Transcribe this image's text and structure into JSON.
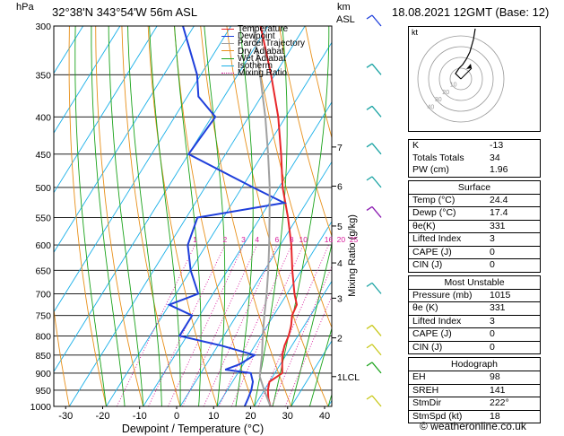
{
  "header": {
    "hpa_label": "hPa",
    "location": "32°38'N  343°54'W  56m  ASL",
    "km_label": "km",
    "asl_label": "ASL",
    "datetime": "18.08.2021  12GMT  (Base: 12)"
  },
  "colors": {
    "temperature": "#e8272a",
    "dewpoint": "#1f3fdb",
    "parcel": "#a0a0a0",
    "dry_adiabat": "#e8901a",
    "wet_adiabat": "#1aa31a",
    "isotherm": "#1ab0e8",
    "mixing_ratio": "#d81a9c"
  },
  "legend": [
    {
      "label": "Temperature",
      "color": "#e8272a",
      "style": "solid"
    },
    {
      "label": "Dewpoint",
      "color": "#1f3fdb",
      "style": "solid"
    },
    {
      "label": "Parcel Trajectory",
      "color": "#a0a0a0",
      "style": "solid"
    },
    {
      "label": "Dry Adiabat",
      "color": "#e8901a",
      "style": "solid"
    },
    {
      "label": "Wet Adiabat",
      "color": "#1aa31a",
      "style": "solid"
    },
    {
      "label": "Isotherm",
      "color": "#1ab0e8",
      "style": "solid"
    },
    {
      "label": "Mixing Ratio",
      "color": "#d81a9c",
      "style": "dotted"
    }
  ],
  "chart_data": {
    "type": "line",
    "xlabel": "Dewpoint / Temperature (°C)",
    "ylabel": "",
    "right_axis_label": "Mixing Ratio (g/kg)",
    "xlim": [
      -40,
      40
    ],
    "ylim": [
      1000,
      300
    ],
    "x_ticks": [
      -30,
      -20,
      -10,
      0,
      10,
      20,
      30,
      40
    ],
    "pressure_levels": [
      300,
      350,
      400,
      450,
      500,
      550,
      600,
      650,
      700,
      750,
      800,
      850,
      900,
      950,
      1000
    ],
    "km_ticks": [
      {
        "km": "1",
        "p": 910,
        "label": "LCL"
      },
      {
        "km": "2",
        "p": 805
      },
      {
        "km": "3",
        "p": 710
      },
      {
        "km": "4",
        "p": 635
      },
      {
        "km": "5",
        "p": 565
      },
      {
        "km": "6",
        "p": 498
      },
      {
        "km": "7",
        "p": 440
      }
    ],
    "mixing_ratio_labels": [
      "1",
      "2",
      "3",
      "4",
      "6",
      "8",
      "10",
      "16",
      "20",
      "25"
    ],
    "mixing_ratio_values": [
      1,
      2,
      3,
      4,
      6,
      8,
      10,
      16,
      20,
      25
    ],
    "series": [
      {
        "name": "Temperature",
        "p": [
          1000,
          975,
          950,
          925,
          900,
          875,
          850,
          825,
          800,
          775,
          750,
          725,
          700,
          650,
          600,
          550,
          500,
          450,
          400,
          350,
          300
        ],
        "t": [
          24.4,
          22.5,
          21,
          20,
          22,
          20.5,
          19,
          18,
          17.5,
          16.5,
          15,
          14.5,
          12,
          7.5,
          3,
          -2.5,
          -9,
          -15,
          -22,
          -31,
          -42
        ]
      },
      {
        "name": "Dewpoint",
        "p": [
          1000,
          975,
          950,
          925,
          900,
          890,
          875,
          850,
          825,
          800,
          780,
          750,
          725,
          700,
          650,
          600,
          550,
          525,
          500,
          450,
          400,
          375,
          350,
          300
        ],
        "t": [
          17.4,
          17,
          16.5,
          15.5,
          13.5,
          6,
          9,
          11.5,
          1,
          -12,
          -12,
          -12,
          -20,
          -14,
          -20,
          -25,
          -27,
          -6,
          -17,
          -40,
          -39,
          -47,
          -51,
          -63
        ]
      },
      {
        "name": "Parcel Trajectory",
        "p": [
          1000,
          950,
          910,
          850,
          800,
          750,
          700,
          650,
          600,
          550,
          500,
          450,
          400,
          350,
          300
        ],
        "t": [
          24.4,
          20,
          16.5,
          13.5,
          10.5,
          7.5,
          4.5,
          1,
          -3,
          -7.5,
          -12.5,
          -18.5,
          -25.5,
          -34,
          -44
        ]
      }
    ]
  },
  "wind_barbs_right": [
    {
      "p": 300,
      "color": "#1f3fdb"
    },
    {
      "p": 350,
      "color": "#1aa3a3"
    },
    {
      "p": 400,
      "color": "#1aa3a3"
    },
    {
      "p": 450,
      "color": "#1aa3a3"
    },
    {
      "p": 500,
      "color": "#1aa3a3"
    },
    {
      "p": 550,
      "color": "#8a1ab0"
    },
    {
      "p": 700,
      "color": "#1aa3a3"
    },
    {
      "p": 800,
      "color": "#c8c81a"
    },
    {
      "p": 850,
      "color": "#c8c81a"
    },
    {
      "p": 900,
      "color": "#1aa31a"
    },
    {
      "p": 1000,
      "color": "#c8c81a"
    }
  ],
  "hodograph": {
    "label": "kt",
    "rings": [
      "10",
      "20",
      "30",
      "40"
    ]
  },
  "indices": {
    "rows": [
      {
        "label": "K",
        "value": "-13"
      },
      {
        "label": "Totals Totals",
        "value": "34"
      },
      {
        "label": "PW (cm)",
        "value": "1.96"
      }
    ]
  },
  "surface": {
    "title": "Surface",
    "rows": [
      {
        "label": "Temp (°C)",
        "value": "24.4"
      },
      {
        "label": "Dewp (°C)",
        "value": "17.4"
      },
      {
        "label": "θe(K)",
        "value": "331"
      },
      {
        "label": "Lifted Index",
        "value": "3"
      },
      {
        "label": "CAPE (J)",
        "value": "0"
      },
      {
        "label": "CIN (J)",
        "value": "0"
      }
    ]
  },
  "most_unstable": {
    "title": "Most Unstable",
    "rows": [
      {
        "label": "Pressure (mb)",
        "value": "1015"
      },
      {
        "label": "θe (K)",
        "value": "331"
      },
      {
        "label": "Lifted Index",
        "value": "3"
      },
      {
        "label": "CAPE (J)",
        "value": "0"
      },
      {
        "label": "CIN (J)",
        "value": "0"
      }
    ]
  },
  "hodograph_table": {
    "title": "Hodograph",
    "rows": [
      {
        "label": "EH",
        "value": "98"
      },
      {
        "label": "SREH",
        "value": "141"
      },
      {
        "label": "StmDir",
        "value": "222°"
      },
      {
        "label": "StmSpd (kt)",
        "value": "18"
      }
    ]
  },
  "copyright": "© weatheronline.co.uk"
}
